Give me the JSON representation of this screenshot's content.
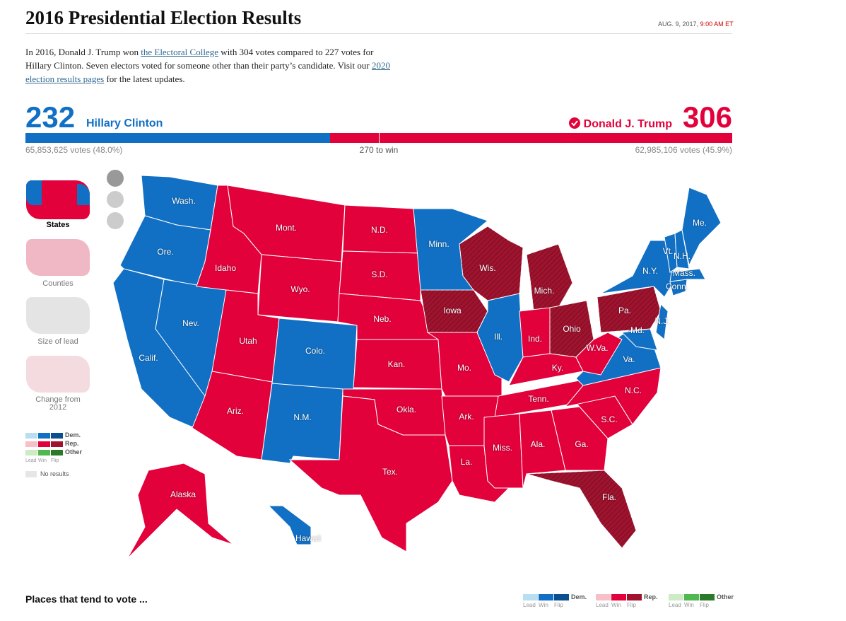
{
  "header": {
    "title": "2016 Presidential Election Results",
    "date": "AUG. 9, 2017,",
    "time": "9:00 AM ET"
  },
  "intro": {
    "parts": [
      "In 2016, Donald J. Trump won ",
      "the Electoral College",
      " with 304 votes compared to 227 votes for Hillary Clinton. Seven electors voted for someone other than their party’s candidate. Visit our ",
      "2020 election results pages",
      " for the latest updates."
    ]
  },
  "scoreboard": {
    "dem": {
      "name": "Hillary Clinton",
      "electoral": 232,
      "votes": "65,853,625 votes (48.0%)",
      "color": "#1170c4"
    },
    "rep": {
      "name": "Donald J. Trump",
      "electoral": 306,
      "votes": "62,985,106 votes (45.9%)",
      "color": "#e2013b"
    },
    "threshold": "270 to win"
  },
  "sidebar": {
    "views": [
      "States",
      "Counties",
      "Size of lead",
      "Change from 2012"
    ],
    "no_results": "No results"
  },
  "legend": {
    "parties": [
      "Dem.",
      "Rep.",
      "Other"
    ],
    "levels": [
      "Lead",
      "Win",
      "Flip"
    ]
  },
  "footer": {
    "heading": "Places that tend to vote ..."
  },
  "map": {
    "colors": {
      "dem": "#1170c4",
      "rep": "#e2013b",
      "rep-flip": "#a0132f"
    },
    "states": [
      {
        "label": "Wash.",
        "result": "dem"
      },
      {
        "label": "Ore.",
        "result": "dem"
      },
      {
        "label": "Calif.",
        "result": "dem"
      },
      {
        "label": "Nev.",
        "result": "dem"
      },
      {
        "label": "Idaho",
        "result": "rep"
      },
      {
        "label": "Mont.",
        "result": "rep"
      },
      {
        "label": "Wyo.",
        "result": "rep"
      },
      {
        "label": "Utah",
        "result": "rep"
      },
      {
        "label": "Ariz.",
        "result": "rep"
      },
      {
        "label": "Colo.",
        "result": "dem"
      },
      {
        "label": "N.M.",
        "result": "dem"
      },
      {
        "label": "N.D.",
        "result": "rep"
      },
      {
        "label": "S.D.",
        "result": "rep"
      },
      {
        "label": "Neb.",
        "result": "rep"
      },
      {
        "label": "Kan.",
        "result": "rep"
      },
      {
        "label": "Okla.",
        "result": "rep"
      },
      {
        "label": "Tex.",
        "result": "rep"
      },
      {
        "label": "Minn.",
        "result": "dem"
      },
      {
        "label": "Iowa",
        "result": "rep-flip"
      },
      {
        "label": "Mo.",
        "result": "rep"
      },
      {
        "label": "Ark.",
        "result": "rep"
      },
      {
        "label": "La.",
        "result": "rep"
      },
      {
        "label": "Wis.",
        "result": "rep-flip"
      },
      {
        "label": "Ill.",
        "result": "dem"
      },
      {
        "label": "Mich.",
        "result": "rep-flip"
      },
      {
        "label": "Ind.",
        "result": "rep"
      },
      {
        "label": "Ohio",
        "result": "rep-flip"
      },
      {
        "label": "Ky.",
        "result": "rep"
      },
      {
        "label": "Tenn.",
        "result": "rep"
      },
      {
        "label": "Miss.",
        "result": "rep"
      },
      {
        "label": "Ala.",
        "result": "rep"
      },
      {
        "label": "Ga.",
        "result": "rep"
      },
      {
        "label": "Fla.",
        "result": "rep-flip"
      },
      {
        "label": "S.C.",
        "result": "rep"
      },
      {
        "label": "N.C.",
        "result": "rep"
      },
      {
        "label": "Va.",
        "result": "dem"
      },
      {
        "label": "W.Va.",
        "result": "rep"
      },
      {
        "label": "Pa.",
        "result": "rep-flip"
      },
      {
        "label": "N.Y.",
        "result": "dem"
      },
      {
        "label": "Md.",
        "result": "dem"
      },
      {
        "label": "N.J.",
        "result": "dem"
      },
      {
        "label": "Conn.",
        "result": "dem"
      },
      {
        "label": "Mass.",
        "result": "dem"
      },
      {
        "label": "Vt.",
        "result": "dem"
      },
      {
        "label": "N.H.",
        "result": "dem"
      },
      {
        "label": "Me.",
        "result": "dem"
      },
      {
        "label": "Alaska",
        "result": "rep"
      },
      {
        "label": "Hawaii",
        "result": "dem"
      }
    ]
  }
}
